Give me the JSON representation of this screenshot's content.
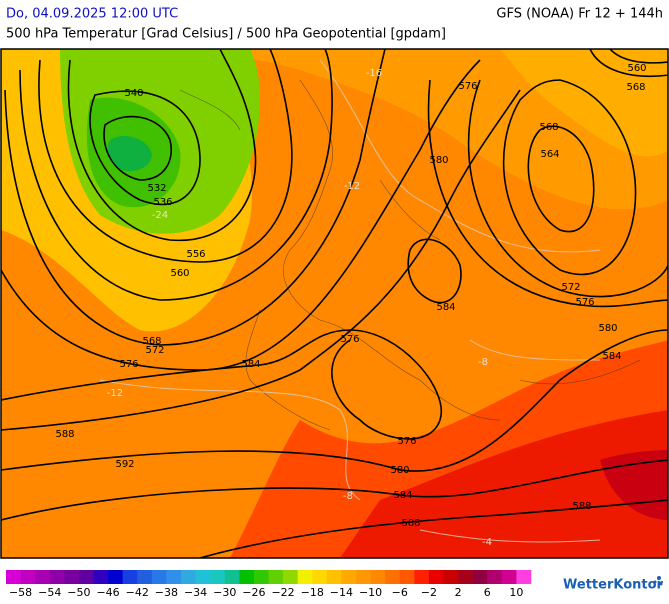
{
  "header": {
    "date": "Do, 04.09.2025 12:00 UTC",
    "model": "GFS (NOAA) Fr 12 + 144h",
    "subtitle": "500 hPa Temperatur [Grad Celsius] / 500 hPa Geopotential [gpdam]"
  },
  "contour_labels": [
    "540",
    "532",
    "536",
    "556",
    "560",
    "568",
    "572",
    "576",
    "584",
    "588",
    "592",
    "576",
    "576",
    "580",
    "584",
    "588",
    "588",
    "584",
    "580",
    "576",
    "568",
    "564",
    "572",
    "576",
    "580",
    "584",
    "568",
    "560"
  ],
  "temperature_labels": [
    "-12",
    "-8",
    "-8",
    "-4",
    "-12",
    "-16",
    "-24"
  ],
  "color_scale": {
    "labels": [
      "−58",
      "−54",
      "−50",
      "−46",
      "−42",
      "−38",
      "−34",
      "−30",
      "−26",
      "−22",
      "−18",
      "−14",
      "−10",
      "−6",
      "−2",
      "2",
      "6",
      "10"
    ],
    "colors": [
      "#d600d6",
      "#c000c0",
      "#a800b0",
      "#9000a8",
      "#7800a0",
      "#6000a0",
      "#3000c0",
      "#0000d0",
      "#1840e0",
      "#2060e0",
      "#2878e8",
      "#3090e8",
      "#30a8e0",
      "#20c0d8",
      "#18c8c0",
      "#10c090",
      "#00c000",
      "#30c800",
      "#60d000",
      "#90d800",
      "#f0f000",
      "#ffd800",
      "#ffc000",
      "#ffa800",
      "#ff9800",
      "#ff8800",
      "#ff7000",
      "#ff5800",
      "#ff2000",
      "#e80000",
      "#c80000",
      "#a80018",
      "#900040",
      "#b00070",
      "#d00090",
      "#ff40e0"
    ]
  },
  "logo": "WetterKontor"
}
